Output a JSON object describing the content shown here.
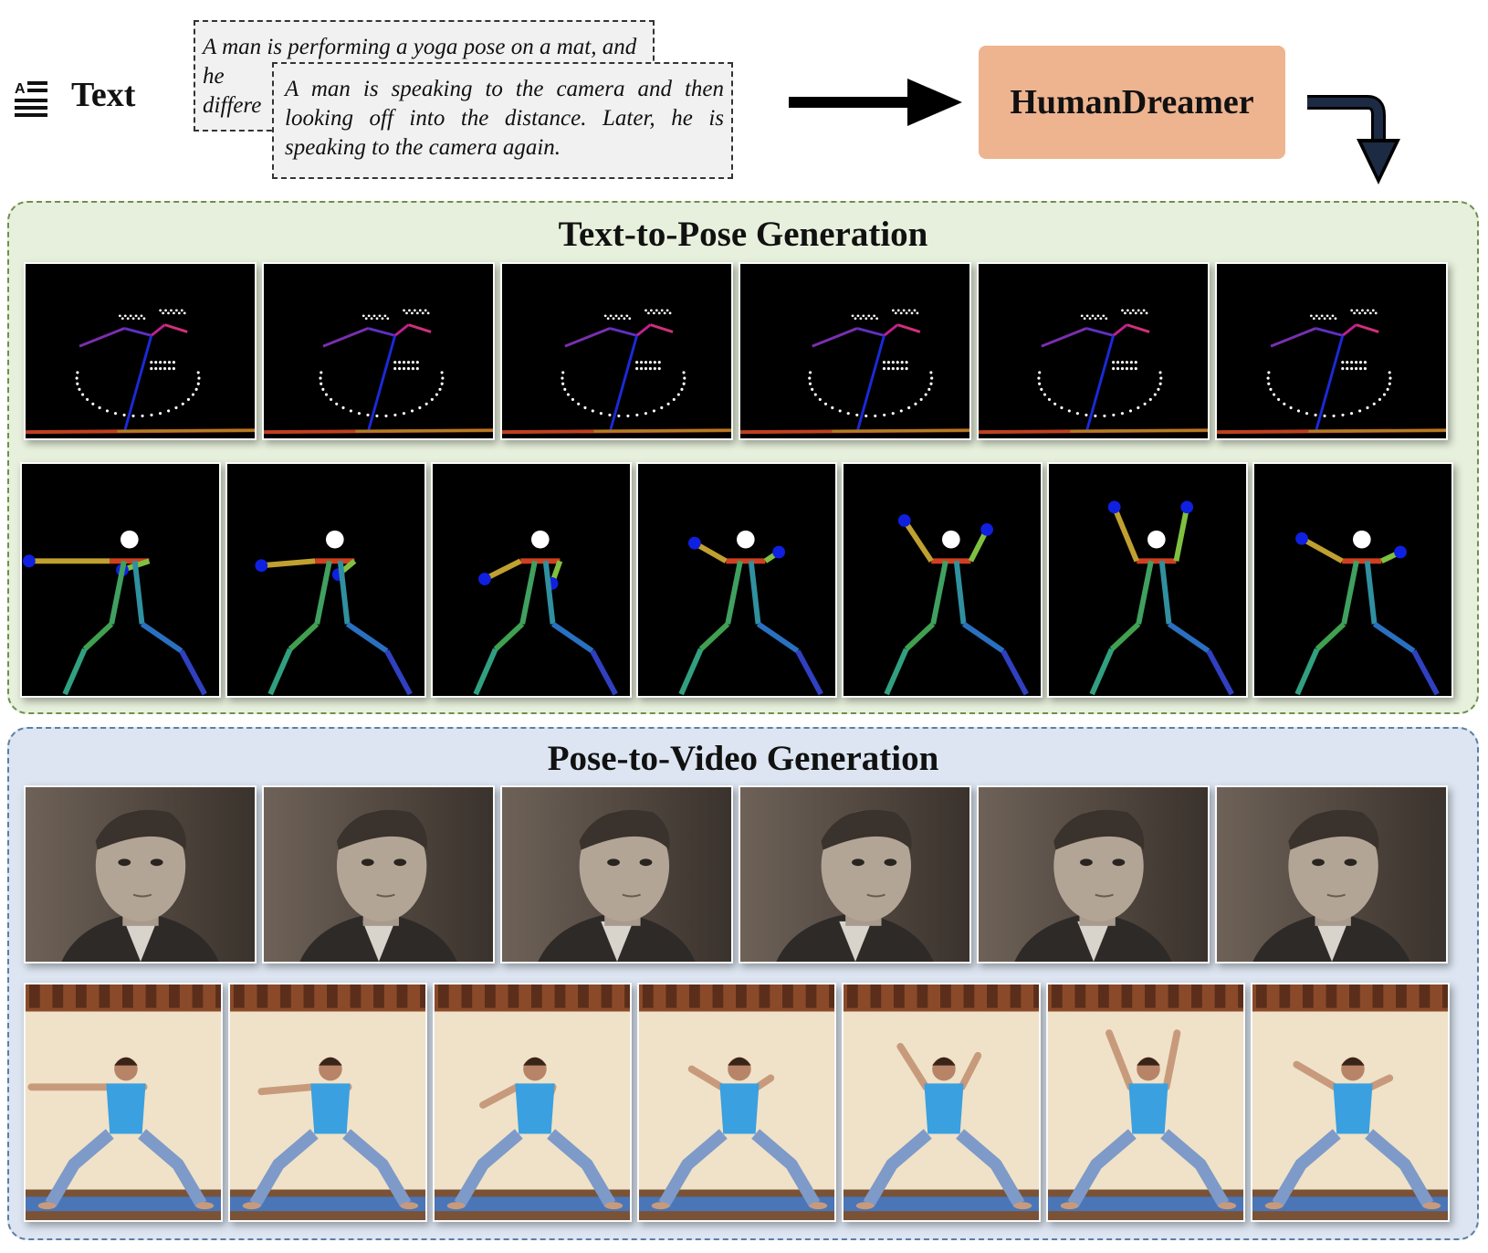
{
  "header": {
    "text_label": "Text",
    "prompt_back": "A man is performing a yoga pose on a mat, and he",
    "prompt_back_line3": "differe",
    "prompt_front": "A man is speaking to the camera and then looking off into the distance. Later, he is speaking to the camera again.",
    "model_name": "HumanDreamer"
  },
  "panels": {
    "pose_title": "Text-to-Pose Generation",
    "video_title": "Pose-to-Video Generation"
  },
  "colors": {
    "pose_panel_bg": "#e7f0dc",
    "pose_panel_border": "#6f8f4e",
    "video_panel_bg": "#dce5f1",
    "video_panel_border": "#5d7ea5",
    "model_box": "#eeb48f"
  }
}
